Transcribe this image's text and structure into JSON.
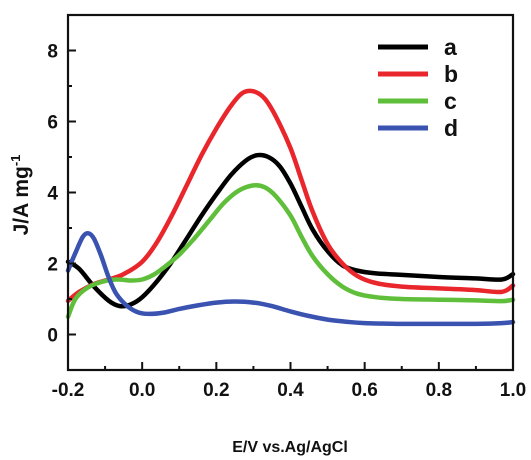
{
  "chart_data": {
    "type": "line",
    "title": "",
    "xlabel": "E/V vs.Ag/AgCl",
    "ylabel_main": "J/A mg",
    "ylabel_sup": "-1",
    "xlim": [
      -0.2,
      1.0
    ],
    "ylim": [
      -1,
      9
    ],
    "x_ticks": [
      "-0.2",
      "0.0",
      "0.2",
      "0.4",
      "0.6",
      "0.8",
      "1.0"
    ],
    "y_ticks": [
      "0",
      "2",
      "4",
      "6",
      "8"
    ],
    "grid": false,
    "legend_position": "top-right",
    "series": [
      {
        "name": "a",
        "color": "#000000",
        "points": [
          [
            -0.2,
            2.05
          ],
          [
            -0.17,
            1.85
          ],
          [
            -0.13,
            1.35
          ],
          [
            -0.09,
            0.95
          ],
          [
            -0.06,
            0.8
          ],
          [
            -0.03,
            0.85
          ],
          [
            0.0,
            1.05
          ],
          [
            0.04,
            1.5
          ],
          [
            0.08,
            2.05
          ],
          [
            0.12,
            2.7
          ],
          [
            0.16,
            3.35
          ],
          [
            0.2,
            3.95
          ],
          [
            0.24,
            4.5
          ],
          [
            0.28,
            4.9
          ],
          [
            0.31,
            5.05
          ],
          [
            0.34,
            5.0
          ],
          [
            0.37,
            4.75
          ],
          [
            0.4,
            4.25
          ],
          [
            0.43,
            3.6
          ],
          [
            0.46,
            2.95
          ],
          [
            0.5,
            2.35
          ],
          [
            0.54,
            1.95
          ],
          [
            0.58,
            1.8
          ],
          [
            0.63,
            1.72
          ],
          [
            0.7,
            1.68
          ],
          [
            0.8,
            1.62
          ],
          [
            0.9,
            1.58
          ],
          [
            0.97,
            1.55
          ],
          [
            1.0,
            1.7
          ]
        ]
      },
      {
        "name": "b",
        "color": "#e8262b",
        "points": [
          [
            -0.2,
            0.95
          ],
          [
            -0.17,
            1.2
          ],
          [
            -0.13,
            1.42
          ],
          [
            -0.09,
            1.55
          ],
          [
            -0.05,
            1.7
          ],
          [
            0.0,
            2.05
          ],
          [
            0.04,
            2.6
          ],
          [
            0.08,
            3.35
          ],
          [
            0.12,
            4.2
          ],
          [
            0.16,
            5.05
          ],
          [
            0.2,
            5.8
          ],
          [
            0.24,
            6.45
          ],
          [
            0.27,
            6.8
          ],
          [
            0.3,
            6.85
          ],
          [
            0.33,
            6.65
          ],
          [
            0.36,
            6.15
          ],
          [
            0.4,
            5.25
          ],
          [
            0.43,
            4.35
          ],
          [
            0.46,
            3.45
          ],
          [
            0.5,
            2.55
          ],
          [
            0.54,
            2.0
          ],
          [
            0.58,
            1.65
          ],
          [
            0.63,
            1.45
          ],
          [
            0.7,
            1.35
          ],
          [
            0.8,
            1.3
          ],
          [
            0.9,
            1.25
          ],
          [
            0.97,
            1.2
          ],
          [
            1.0,
            1.38
          ]
        ]
      },
      {
        "name": "c",
        "color": "#5fbf3a",
        "points": [
          [
            -0.2,
            0.5
          ],
          [
            -0.18,
            1.0
          ],
          [
            -0.15,
            1.3
          ],
          [
            -0.11,
            1.48
          ],
          [
            -0.07,
            1.55
          ],
          [
            -0.03,
            1.52
          ],
          [
            0.0,
            1.55
          ],
          [
            0.03,
            1.68
          ],
          [
            0.06,
            1.9
          ],
          [
            0.1,
            2.25
          ],
          [
            0.14,
            2.7
          ],
          [
            0.18,
            3.2
          ],
          [
            0.22,
            3.7
          ],
          [
            0.26,
            4.05
          ],
          [
            0.3,
            4.2
          ],
          [
            0.33,
            4.15
          ],
          [
            0.36,
            3.9
          ],
          [
            0.4,
            3.35
          ],
          [
            0.43,
            2.75
          ],
          [
            0.46,
            2.2
          ],
          [
            0.5,
            1.7
          ],
          [
            0.54,
            1.35
          ],
          [
            0.58,
            1.15
          ],
          [
            0.63,
            1.05
          ],
          [
            0.7,
            1.0
          ],
          [
            0.8,
            0.98
          ],
          [
            0.9,
            0.96
          ],
          [
            0.97,
            0.94
          ],
          [
            1.0,
            0.98
          ]
        ]
      },
      {
        "name": "d",
        "color": "#3a52b0",
        "points": [
          [
            -0.2,
            1.8
          ],
          [
            -0.18,
            2.3
          ],
          [
            -0.16,
            2.75
          ],
          [
            -0.145,
            2.85
          ],
          [
            -0.13,
            2.7
          ],
          [
            -0.11,
            2.2
          ],
          [
            -0.09,
            1.6
          ],
          [
            -0.07,
            1.15
          ],
          [
            -0.04,
            0.8
          ],
          [
            -0.01,
            0.62
          ],
          [
            0.02,
            0.58
          ],
          [
            0.06,
            0.62
          ],
          [
            0.1,
            0.72
          ],
          [
            0.15,
            0.82
          ],
          [
            0.2,
            0.9
          ],
          [
            0.25,
            0.93
          ],
          [
            0.3,
            0.9
          ],
          [
            0.35,
            0.8
          ],
          [
            0.4,
            0.65
          ],
          [
            0.45,
            0.52
          ],
          [
            0.5,
            0.42
          ],
          [
            0.55,
            0.36
          ],
          [
            0.6,
            0.32
          ],
          [
            0.7,
            0.3
          ],
          [
            0.8,
            0.3
          ],
          [
            0.9,
            0.3
          ],
          [
            0.97,
            0.32
          ],
          [
            1.0,
            0.35
          ]
        ]
      }
    ]
  }
}
